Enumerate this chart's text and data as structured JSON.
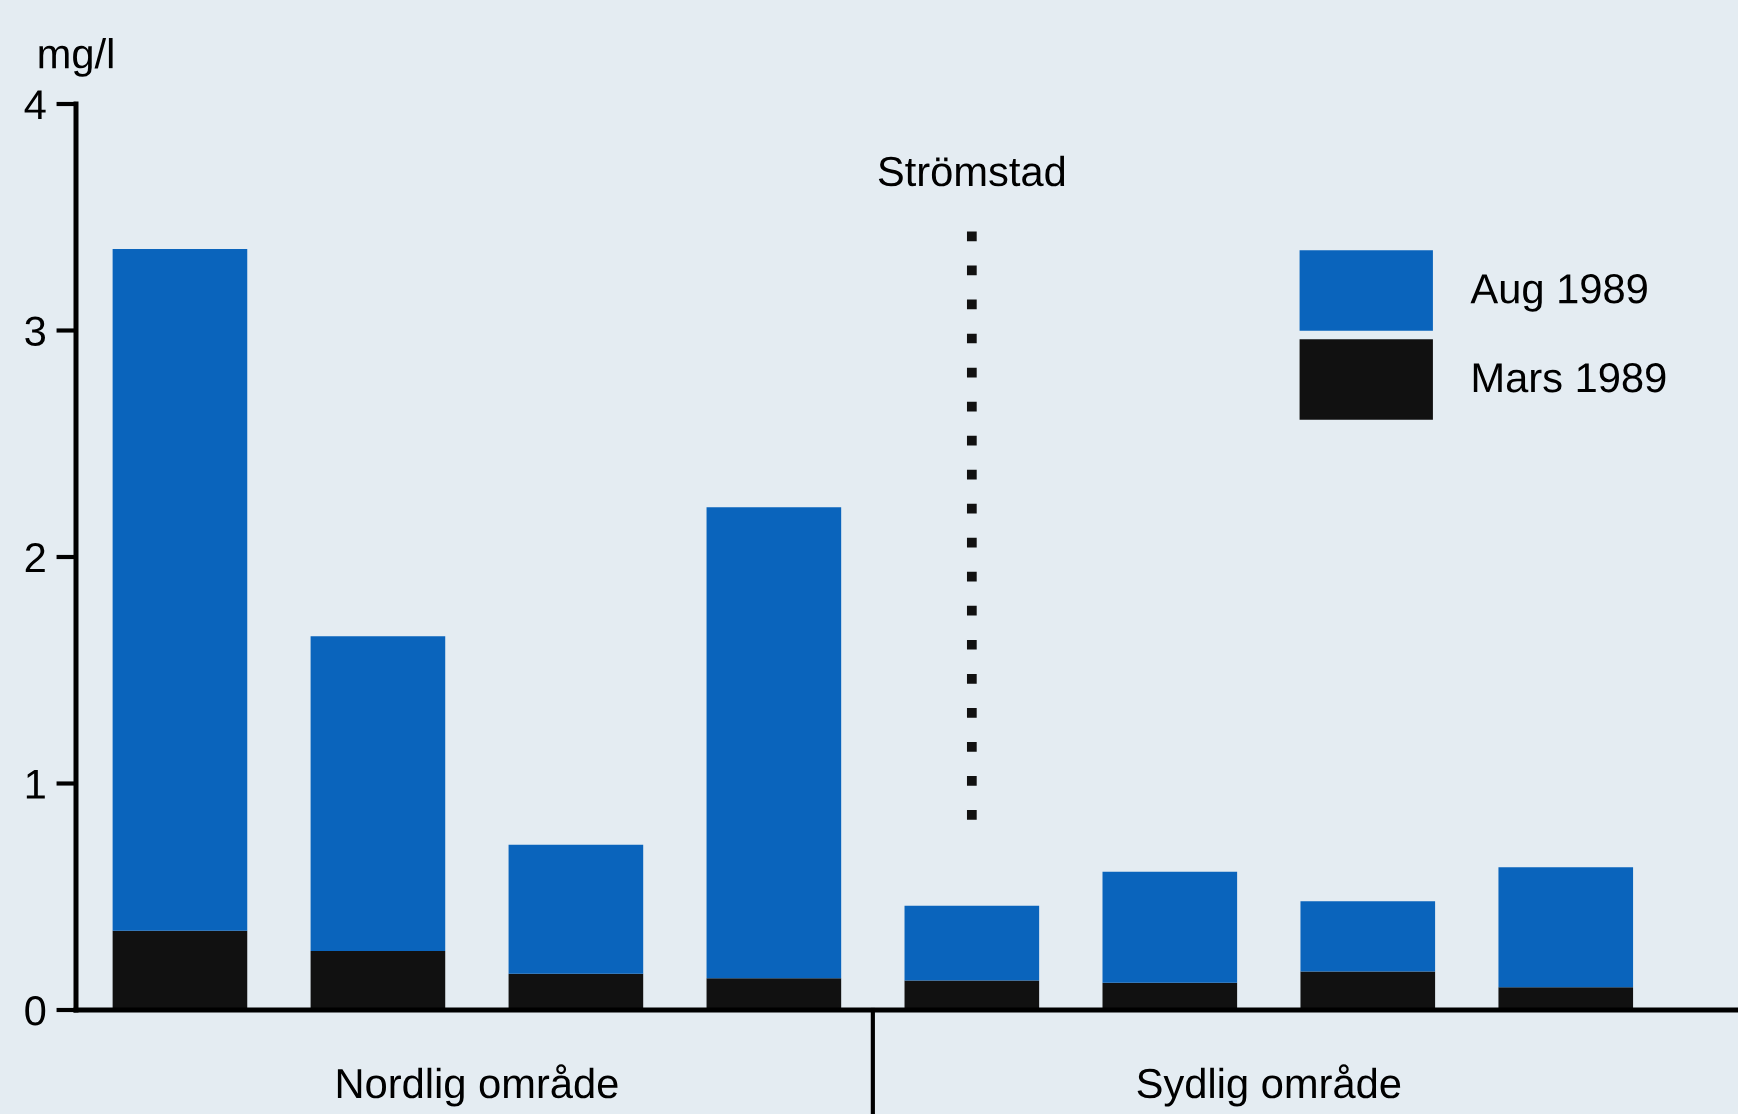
{
  "chart_data": {
    "type": "bar",
    "stacked": true,
    "ylabel": "mg/l",
    "categories": [
      null,
      null,
      null,
      null,
      null,
      null,
      null,
      null
    ],
    "series": [
      {
        "name": "Mars 1989",
        "color": "#111111",
        "values": [
          0.35,
          0.26,
          0.16,
          0.14,
          0.13,
          0.12,
          0.17,
          0.1
        ]
      },
      {
        "name": "Aug 1989",
        "color": "#0a64bc",
        "values": [
          3.01,
          1.39,
          0.57,
          2.08,
          0.33,
          0.49,
          0.31,
          0.53
        ]
      }
    ],
    "ylim": [
      0,
      4
    ],
    "yticks": [
      0,
      1,
      2,
      3,
      4
    ],
    "grid": false,
    "legend": "top right",
    "annotations": [
      "Nordlig område",
      "Sydlig område",
      "Strömstad"
    ]
  }
}
